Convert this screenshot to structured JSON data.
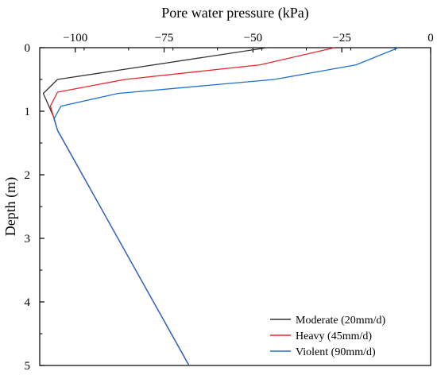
{
  "chart_data": {
    "type": "line",
    "xlabel": "Pore water pressure (kPa)",
    "ylabel": "Depth (m)",
    "xlim": [
      -110,
      0
    ],
    "ylim": [
      0,
      5
    ],
    "y_inverted": true,
    "x_axis_position": "top",
    "xticks": [
      -100,
      -75,
      -50,
      -25,
      0
    ],
    "xtick_labels": [
      "−100",
      "−75",
      "−50",
      "−25",
      "0"
    ],
    "yticks": [
      0,
      1,
      2,
      3,
      4,
      5
    ],
    "ytick_labels": [
      "0",
      "1",
      "2",
      "3",
      "4",
      "5"
    ],
    "grid": false,
    "legend_position": "bottom-right",
    "series": [
      {
        "name": "Moderate (20mm/d)",
        "color": "#333333",
        "points": [
          [
            -46,
            0
          ],
          [
            -105,
            0.5
          ],
          [
            -109,
            0.72
          ],
          [
            -106,
            1.1
          ],
          [
            -105,
            1.3
          ],
          [
            -68,
            5
          ]
        ]
      },
      {
        "name": "Heavy (45mm/d)",
        "color": "#e8262b",
        "points": [
          [
            -27,
            0
          ],
          [
            -48,
            0.27
          ],
          [
            -86,
            0.5
          ],
          [
            -105,
            0.7
          ],
          [
            -107,
            0.92
          ],
          [
            -105,
            1.3
          ],
          [
            -68,
            5
          ]
        ]
      },
      {
        "name": "Violent (90mm/d)",
        "color": "#1f6fce",
        "points": [
          [
            -9,
            0
          ],
          [
            -21,
            0.27
          ],
          [
            -44,
            0.5
          ],
          [
            -88,
            0.72
          ],
          [
            -104,
            0.92
          ],
          [
            -106,
            1.12
          ],
          [
            -105,
            1.3
          ],
          [
            -68,
            5
          ]
        ]
      }
    ]
  }
}
